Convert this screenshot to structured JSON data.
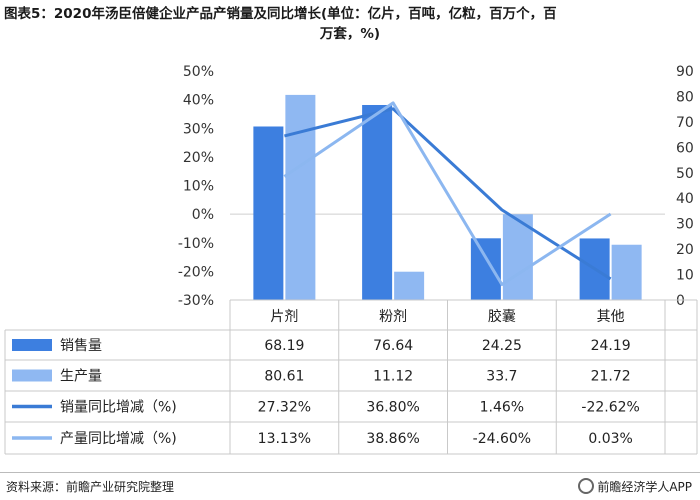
{
  "title": {
    "line1": "图表5：2020年汤臣倍健企业产品产销量及同比增长(单位：亿片，百吨，亿粒，百万个，百",
    "line2": "万套，%)"
  },
  "chart_data": {
    "type": "bar",
    "categories": [
      "片剂",
      "粉剂",
      "胶囊",
      "其他"
    ],
    "series": [
      {
        "name": "销售量",
        "kind": "bar",
        "axis": "right",
        "color": "#3d7fe0",
        "values": [
          68.19,
          76.64,
          24.25,
          24.19
        ],
        "labels": [
          "68.19",
          "76.64",
          "24.25",
          "24.19"
        ]
      },
      {
        "name": "生产量",
        "kind": "bar",
        "axis": "right",
        "color": "#8fb8f2",
        "values": [
          80.61,
          11.12,
          33.7,
          21.72
        ],
        "labels": [
          "80.61",
          "11.12",
          "33.7",
          "21.72"
        ]
      },
      {
        "name": "销量同比增减（%)",
        "kind": "line",
        "axis": "left",
        "color": "#3a7bd5",
        "values": [
          27.32,
          36.8,
          1.46,
          -22.62
        ],
        "labels": [
          "27.32%",
          "36.80%",
          "1.46%",
          "-22.62%"
        ]
      },
      {
        "name": "产量同比增减（%)",
        "kind": "line",
        "axis": "left",
        "color": "#8cb7f0",
        "values": [
          13.13,
          38.86,
          -24.6,
          0.03
        ],
        "labels": [
          "13.13%",
          "38.86%",
          "-24.60%",
          "0.03%"
        ]
      }
    ],
    "left_axis": {
      "ylim": [
        -30,
        50
      ],
      "ticks": [
        "50%",
        "40%",
        "30%",
        "20%",
        "10%",
        "0%",
        "-10%",
        "-20%",
        "-30%"
      ]
    },
    "right_axis": {
      "ylim": [
        0,
        90
      ],
      "ticks": [
        "90",
        "80",
        "70",
        "60",
        "50",
        "40",
        "30",
        "20",
        "10",
        "0"
      ]
    },
    "legend": "data-table-rows"
  },
  "footer": {
    "source": "资料来源：前瞻产业研究院整理",
    "brand": "前瞻经济学人APP"
  }
}
